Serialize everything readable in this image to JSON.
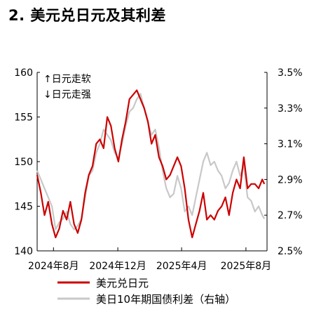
{
  "title": "2. 美元兑日元及其利差",
  "chart_data": {
    "type": "line",
    "title": "2. 美元兑日元及其利差",
    "annotations": [
      "↑日元走软",
      "↓日元走强"
    ],
    "x_ticks": [
      "2024年8月",
      "2024年12月",
      "2025年4月",
      "2025年8月"
    ],
    "x_range": [
      "2024-07-01",
      "2025-09-10"
    ],
    "y_left": {
      "range": [
        140,
        160
      ],
      "ticks": [
        "140",
        "145",
        "150",
        "155",
        "160"
      ]
    },
    "y_right": {
      "range": [
        2.5,
        3.5
      ],
      "ticks": [
        "2.5%",
        "2.7%",
        "2.9%",
        "3.1%",
        "3.3%",
        "3.5%"
      ]
    },
    "legend_position": "bottom",
    "grid": false,
    "series": [
      {
        "name": "美元兑日元",
        "axis": "left",
        "color": "#cc0000",
        "points": [
          [
            "2024-07-01",
            148.5
          ],
          [
            "2024-07-08",
            146.5
          ],
          [
            "2024-07-15",
            144.0
          ],
          [
            "2024-07-22",
            145.5
          ],
          [
            "2024-07-29",
            143.0
          ],
          [
            "2024-08-05",
            141.5
          ],
          [
            "2024-08-12",
            142.5
          ],
          [
            "2024-08-19",
            144.5
          ],
          [
            "2024-08-26",
            143.5
          ],
          [
            "2024-09-02",
            145.5
          ],
          [
            "2024-09-09",
            143.0
          ],
          [
            "2024-09-16",
            142.0
          ],
          [
            "2024-09-23",
            143.5
          ],
          [
            "2024-09-30",
            146.5
          ],
          [
            "2024-10-07",
            148.5
          ],
          [
            "2024-10-14",
            149.5
          ],
          [
            "2024-10-21",
            152.0
          ],
          [
            "2024-10-28",
            152.5
          ],
          [
            "2024-11-04",
            151.5
          ],
          [
            "2024-11-11",
            155.0
          ],
          [
            "2024-11-18",
            154.0
          ],
          [
            "2024-11-25",
            151.5
          ],
          [
            "2024-12-02",
            150.0
          ],
          [
            "2024-12-09",
            152.5
          ],
          [
            "2024-12-16",
            154.5
          ],
          [
            "2024-12-23",
            157.0
          ],
          [
            "2024-12-30",
            157.5
          ],
          [
            "2025-01-06",
            158.0
          ],
          [
            "2025-01-13",
            157.0
          ],
          [
            "2025-01-20",
            156.0
          ],
          [
            "2025-01-27",
            154.5
          ],
          [
            "2025-02-03",
            152.0
          ],
          [
            "2025-02-10",
            153.0
          ],
          [
            "2025-02-17",
            150.5
          ],
          [
            "2025-02-24",
            149.5
          ],
          [
            "2025-03-03",
            148.0
          ],
          [
            "2025-03-10",
            148.5
          ],
          [
            "2025-03-17",
            149.5
          ],
          [
            "2025-03-24",
            150.5
          ],
          [
            "2025-03-31",
            149.5
          ],
          [
            "2025-04-07",
            147.0
          ],
          [
            "2025-04-14",
            143.5
          ],
          [
            "2025-04-21",
            141.5
          ],
          [
            "2025-04-28",
            143.0
          ],
          [
            "2025-05-05",
            144.5
          ],
          [
            "2025-05-12",
            146.5
          ],
          [
            "2025-05-19",
            143.5
          ],
          [
            "2025-05-26",
            144.0
          ],
          [
            "2025-06-02",
            143.5
          ],
          [
            "2025-06-09",
            144.5
          ],
          [
            "2025-06-16",
            145.0
          ],
          [
            "2025-06-23",
            146.0
          ],
          [
            "2025-06-30",
            144.0
          ],
          [
            "2025-07-07",
            146.5
          ],
          [
            "2025-07-14",
            148.0
          ],
          [
            "2025-07-21",
            147.0
          ],
          [
            "2025-07-28",
            150.5
          ],
          [
            "2025-08-04",
            147.0
          ],
          [
            "2025-08-11",
            147.5
          ],
          [
            "2025-08-18",
            147.5
          ],
          [
            "2025-08-25",
            147.0
          ],
          [
            "2025-09-01",
            148.0
          ],
          [
            "2025-09-05",
            147.5
          ]
        ]
      },
      {
        "name": "美日10年期国债利差（右轴）",
        "axis": "right",
        "color": "#c8c8c8",
        "points": [
          [
            "2024-07-01",
            2.95
          ],
          [
            "2024-07-08",
            2.9
          ],
          [
            "2024-07-15",
            2.85
          ],
          [
            "2024-07-22",
            2.8
          ],
          [
            "2024-07-29",
            2.75
          ],
          [
            "2024-08-05",
            2.62
          ],
          [
            "2024-08-12",
            2.66
          ],
          [
            "2024-08-19",
            2.68
          ],
          [
            "2024-08-26",
            2.72
          ],
          [
            "2024-09-02",
            2.65
          ],
          [
            "2024-09-09",
            2.62
          ],
          [
            "2024-09-16",
            2.64
          ],
          [
            "2024-09-23",
            2.68
          ],
          [
            "2024-09-30",
            2.8
          ],
          [
            "2024-10-07",
            2.92
          ],
          [
            "2024-10-14",
            2.95
          ],
          [
            "2024-10-21",
            3.05
          ],
          [
            "2024-10-28",
            3.1
          ],
          [
            "2024-11-04",
            3.18
          ],
          [
            "2024-11-11",
            3.15
          ],
          [
            "2024-11-18",
            3.12
          ],
          [
            "2024-11-25",
            3.05
          ],
          [
            "2024-12-02",
            3.02
          ],
          [
            "2024-12-09",
            3.1
          ],
          [
            "2024-12-16",
            3.2
          ],
          [
            "2024-12-23",
            3.28
          ],
          [
            "2024-12-30",
            3.3
          ],
          [
            "2025-01-06",
            3.35
          ],
          [
            "2025-01-13",
            3.38
          ],
          [
            "2025-01-20",
            3.3
          ],
          [
            "2025-01-27",
            3.22
          ],
          [
            "2025-02-03",
            3.15
          ],
          [
            "2025-02-10",
            3.18
          ],
          [
            "2025-02-17",
            3.08
          ],
          [
            "2025-02-24",
            2.95
          ],
          [
            "2025-03-03",
            2.85
          ],
          [
            "2025-03-10",
            2.8
          ],
          [
            "2025-03-17",
            2.82
          ],
          [
            "2025-03-24",
            2.92
          ],
          [
            "2025-03-31",
            2.85
          ],
          [
            "2025-04-07",
            2.72
          ],
          [
            "2025-04-14",
            2.75
          ],
          [
            "2025-04-21",
            2.7
          ],
          [
            "2025-04-28",
            2.8
          ],
          [
            "2025-05-05",
            2.9
          ],
          [
            "2025-05-12",
            3.0
          ],
          [
            "2025-05-19",
            3.05
          ],
          [
            "2025-05-26",
            2.98
          ],
          [
            "2025-06-02",
            3.0
          ],
          [
            "2025-06-09",
            2.95
          ],
          [
            "2025-06-16",
            2.92
          ],
          [
            "2025-06-23",
            2.85
          ],
          [
            "2025-06-30",
            2.88
          ],
          [
            "2025-07-07",
            2.95
          ],
          [
            "2025-07-14",
            3.0
          ],
          [
            "2025-07-21",
            2.92
          ],
          [
            "2025-07-28",
            2.98
          ],
          [
            "2025-08-04",
            2.8
          ],
          [
            "2025-08-11",
            2.78
          ],
          [
            "2025-08-18",
            2.72
          ],
          [
            "2025-08-25",
            2.75
          ],
          [
            "2025-09-01",
            2.7
          ],
          [
            "2025-09-05",
            2.68
          ]
        ]
      }
    ]
  }
}
